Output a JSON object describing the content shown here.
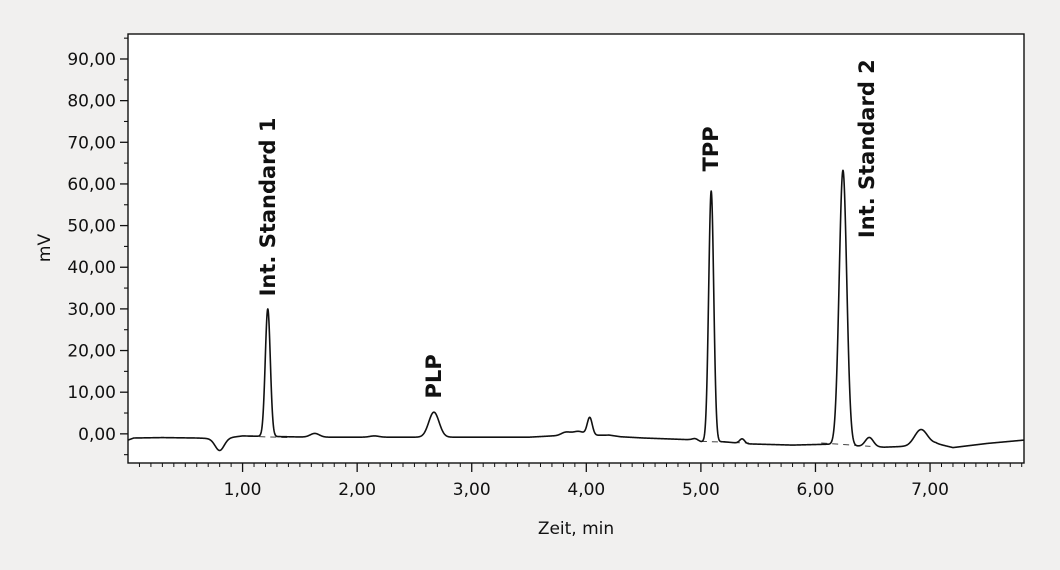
{
  "chart_data": {
    "type": "line",
    "title": "",
    "xlabel": "Zeit, min",
    "ylabel": "mV",
    "xlim": [
      0,
      7.82
    ],
    "ylim": [
      -7,
      96
    ],
    "x_ticks": [
      1,
      2,
      3,
      4,
      5,
      6,
      7
    ],
    "x_tick_labels": [
      "1,00",
      "2,00",
      "3,00",
      "4,00",
      "5,00",
      "6,00",
      "7,00"
    ],
    "y_ticks": [
      0,
      10,
      20,
      30,
      40,
      50,
      60,
      70,
      80,
      90
    ],
    "y_tick_labels": [
      "0,00",
      "10,00",
      "20,00",
      "30,00",
      "40,00",
      "50,00",
      "60,00",
      "70,00",
      "80,00",
      "90,00"
    ],
    "grid": false,
    "legend": "none",
    "series": [
      {
        "color": "#111111",
        "baseline": -0.9,
        "baseline_points": [
          [
            0.0,
            -1.5
          ],
          [
            0.05,
            -1.0
          ],
          [
            0.3,
            -0.9
          ],
          [
            0.6,
            -1.0
          ],
          [
            0.8,
            -1.2
          ],
          [
            1.0,
            -0.5
          ],
          [
            1.6,
            -0.8
          ],
          [
            2.5,
            -0.8
          ],
          [
            3.5,
            -0.8
          ],
          [
            3.7,
            -0.5
          ],
          [
            4.2,
            -0.3
          ],
          [
            4.3,
            -0.7
          ],
          [
            4.5,
            -1.0
          ],
          [
            4.9,
            -1.4
          ],
          [
            5.0,
            -1.9
          ],
          [
            5.2,
            -1.9
          ],
          [
            5.4,
            -2.4
          ],
          [
            5.8,
            -2.7
          ],
          [
            6.1,
            -2.5
          ],
          [
            6.4,
            -3.0
          ],
          [
            6.6,
            -3.2
          ],
          [
            6.8,
            -3.0
          ],
          [
            7.05,
            -2.3
          ],
          [
            7.2,
            -3.3
          ],
          [
            7.5,
            -2.3
          ],
          [
            7.82,
            -1.5
          ]
        ],
        "peaks": [
          {
            "x": 0.8,
            "height": -2.8,
            "width": 0.04
          },
          {
            "x": 1.22,
            "height": 30.6,
            "width": 0.022
          },
          {
            "x": 1.63,
            "height": 0.9,
            "width": 0.04
          },
          {
            "x": 2.15,
            "height": 0.3,
            "width": 0.04
          },
          {
            "x": 2.67,
            "height": 6.0,
            "width": 0.045
          },
          {
            "x": 3.82,
            "height": 0.8,
            "width": 0.04
          },
          {
            "x": 3.93,
            "height": 1.0,
            "width": 0.05
          },
          {
            "x": 4.03,
            "height": 4.2,
            "width": 0.022
          },
          {
            "x": 4.95,
            "height": 0.5,
            "width": 0.025
          },
          {
            "x": 5.09,
            "height": 60.2,
            "width": 0.022
          },
          {
            "x": 5.36,
            "height": 1.1,
            "width": 0.022
          },
          {
            "x": 6.24,
            "height": 66.0,
            "width": 0.033
          },
          {
            "x": 6.47,
            "height": 2.2,
            "width": 0.035
          },
          {
            "x": 6.92,
            "height": 3.7,
            "width": 0.055
          }
        ]
      }
    ],
    "integration_lines": [
      {
        "x": [
          1.05,
          1.42
        ],
        "y": [
          -0.6,
          -0.9
        ]
      },
      {
        "x": [
          5.0,
          5.42
        ],
        "y": [
          -1.8,
          -2.2
        ]
      },
      {
        "x": [
          6.05,
          6.48
        ],
        "y": [
          -2.2,
          -3.0
        ]
      }
    ],
    "peak_labels": [
      {
        "text": "Int. Standard 1",
        "x": 1.22,
        "y": 33
      },
      {
        "text": "PLP",
        "x": 2.67,
        "y": 8.5
      },
      {
        "text": "TPP",
        "x": 5.09,
        "y": 63
      },
      {
        "text": "Int. Standard 2",
        "x": 6.45,
        "y": 47
      }
    ]
  }
}
